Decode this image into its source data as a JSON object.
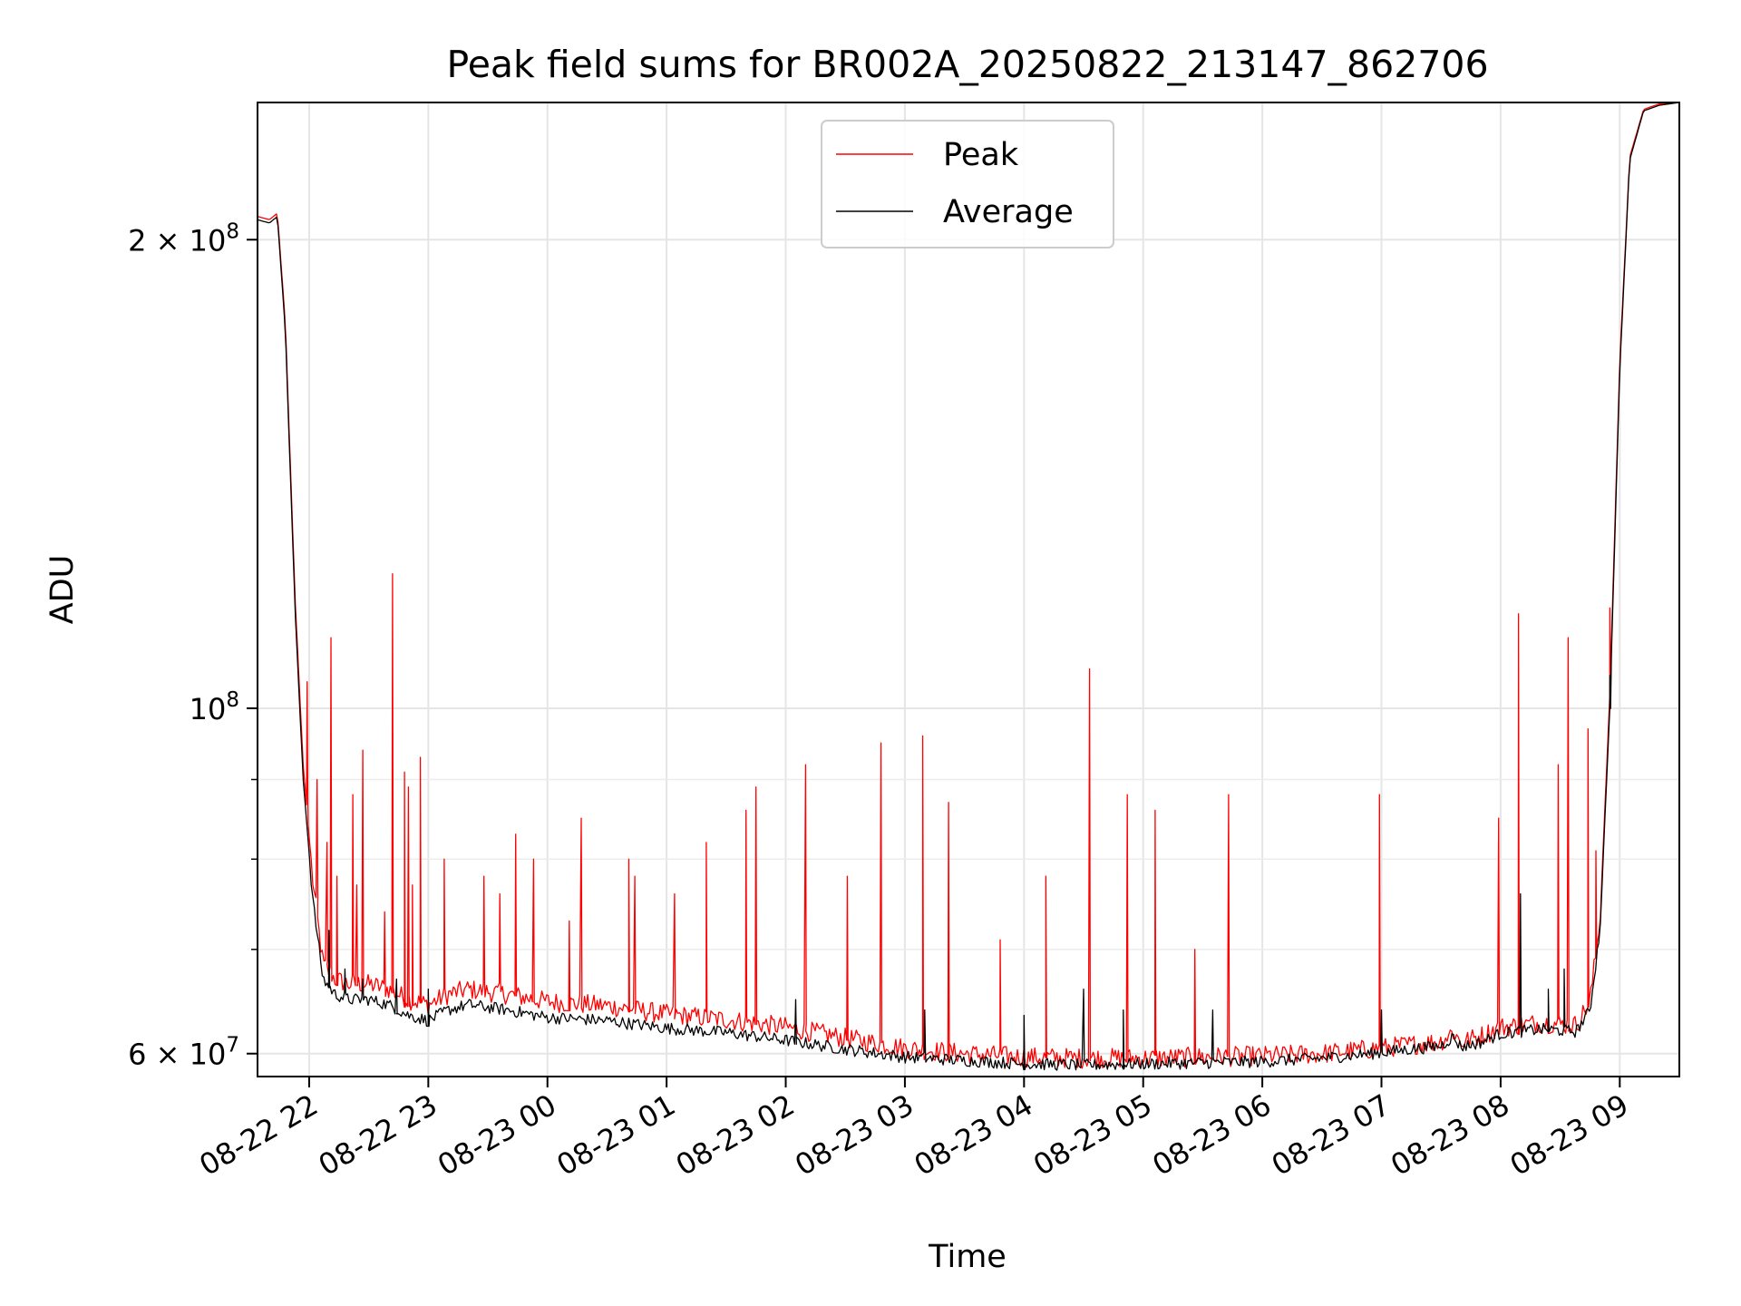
{
  "chart_data": {
    "type": "line",
    "title": "Peak field sums for BR002A_20250822_213147_862706",
    "xlabel": "Time",
    "ylabel": "ADU",
    "y_scale": "log",
    "grid": true,
    "legend_placement": "upper-center",
    "xlim": [
      "2025-08-22T21:34",
      "2025-08-23T09:30"
    ],
    "ylim": [
      58000000,
      245000000
    ],
    "x_ticks": [
      {
        "value": "2025-08-22T22:00",
        "label": "08-22 22"
      },
      {
        "value": "2025-08-22T23:00",
        "label": "08-22 23"
      },
      {
        "value": "2025-08-23T00:00",
        "label": "08-23 00"
      },
      {
        "value": "2025-08-23T01:00",
        "label": "08-23 01"
      },
      {
        "value": "2025-08-23T02:00",
        "label": "08-23 02"
      },
      {
        "value": "2025-08-23T03:00",
        "label": "08-23 03"
      },
      {
        "value": "2025-08-23T04:00",
        "label": "08-23 04"
      },
      {
        "value": "2025-08-23T05:00",
        "label": "08-23 05"
      },
      {
        "value": "2025-08-23T06:00",
        "label": "08-23 06"
      },
      {
        "value": "2025-08-23T07:00",
        "label": "08-23 07"
      },
      {
        "value": "2025-08-23T08:00",
        "label": "08-23 08"
      },
      {
        "value": "2025-08-23T09:00",
        "label": "08-23 09"
      }
    ],
    "y_major_ticks": [
      {
        "value": 60000000,
        "mantissa": "6",
        "exp": "7"
      },
      {
        "value": 100000000,
        "mantissa": "",
        "exp": "8"
      },
      {
        "value": 200000000,
        "mantissa": "2",
        "exp": "8"
      }
    ],
    "y_minor_ticks": [
      70000000,
      80000000,
      90000000
    ],
    "series": [
      {
        "name": "Average",
        "color": "#000000",
        "points": [
          [
            "2025-08-22T21:34",
            206000000
          ],
          [
            "2025-08-22T21:40",
            205000000
          ],
          [
            "2025-08-22T21:44",
            207000000
          ],
          [
            "2025-08-22T21:48",
            175000000
          ],
          [
            "2025-08-22T21:53",
            115000000
          ],
          [
            "2025-08-22T21:57",
            90000000
          ],
          [
            "2025-08-22T22:02",
            75000000
          ],
          [
            "2025-08-22T22:07",
            67000000
          ],
          [
            "2025-08-22T22:13",
            65500000
          ],
          [
            "2025-08-22T22:20",
            65000000
          ],
          [
            "2025-08-22T22:30",
            65000000
          ],
          [
            "2025-08-22T22:40",
            64500000
          ],
          [
            "2025-08-22T22:50",
            63500000
          ],
          [
            "2025-08-22T23:00",
            63000000
          ],
          [
            "2025-08-22T23:10",
            64000000
          ],
          [
            "2025-08-22T23:20",
            64500000
          ],
          [
            "2025-08-22T23:40",
            64000000
          ],
          [
            "2025-08-23T00:00",
            63300000
          ],
          [
            "2025-08-23T00:30",
            63000000
          ],
          [
            "2025-08-23T01:00",
            62300000
          ],
          [
            "2025-08-23T01:30",
            61900000
          ],
          [
            "2025-08-23T02:00",
            61200000
          ],
          [
            "2025-08-23T02:30",
            60400000
          ],
          [
            "2025-08-23T03:00",
            59700000
          ],
          [
            "2025-08-23T03:30",
            59400000
          ],
          [
            "2025-08-23T04:00",
            59100000
          ],
          [
            "2025-08-23T04:30",
            59000000
          ],
          [
            "2025-08-23T05:00",
            59100000
          ],
          [
            "2025-08-23T05:30",
            59200000
          ],
          [
            "2025-08-23T06:00",
            59300000
          ],
          [
            "2025-08-23T06:30",
            59600000
          ],
          [
            "2025-08-23T07:00",
            60100000
          ],
          [
            "2025-08-23T07:30",
            60700000
          ],
          [
            "2025-08-23T07:36",
            61500000
          ],
          [
            "2025-08-23T07:40",
            60600000
          ],
          [
            "2025-08-23T07:50",
            61000000
          ],
          [
            "2025-08-23T08:00",
            61800000
          ],
          [
            "2025-08-23T08:20",
            62200000
          ],
          [
            "2025-08-23T08:38",
            62000000
          ],
          [
            "2025-08-23T08:45",
            64000000
          ],
          [
            "2025-08-23T08:50",
            72000000
          ],
          [
            "2025-08-23T08:55",
            100000000
          ],
          [
            "2025-08-23T09:00",
            165000000
          ],
          [
            "2025-08-23T09:05",
            225000000
          ],
          [
            "2025-08-23T09:12",
            242000000
          ],
          [
            "2025-08-23T09:20",
            244000000
          ],
          [
            "2025-08-23T09:30",
            245000000
          ]
        ],
        "spikes": [
          [
            "2025-08-22T22:10",
            72000000
          ],
          [
            "2025-08-22T22:18",
            68000000
          ],
          [
            "2025-08-22T22:27",
            67000000
          ],
          [
            "2025-08-22T22:44",
            67000000
          ],
          [
            "2025-08-22T23:00",
            66000000
          ],
          [
            "2025-08-23T02:05",
            65000000
          ],
          [
            "2025-08-23T03:10",
            64000000
          ],
          [
            "2025-08-23T04:00",
            63500000
          ],
          [
            "2025-08-23T04:30",
            66000000
          ],
          [
            "2025-08-23T04:50",
            64000000
          ],
          [
            "2025-08-23T05:35",
            64000000
          ],
          [
            "2025-08-23T07:00",
            64000000
          ],
          [
            "2025-08-23T08:10",
            76000000
          ],
          [
            "2025-08-23T08:24",
            66000000
          ],
          [
            "2025-08-23T08:32",
            68000000
          ],
          [
            "2025-08-23T08:55",
            105000000
          ]
        ]
      },
      {
        "name": "Peak",
        "color": "#ff0000",
        "points": [
          [
            "2025-08-22T21:34",
            207000000
          ],
          [
            "2025-08-22T21:40",
            206000000
          ],
          [
            "2025-08-22T21:44",
            208000000
          ],
          [
            "2025-08-22T21:48",
            177000000
          ],
          [
            "2025-08-22T21:53",
            117000000
          ],
          [
            "2025-08-22T21:57",
            92000000
          ],
          [
            "2025-08-22T22:02",
            77000000
          ],
          [
            "2025-08-22T22:07",
            68500000
          ],
          [
            "2025-08-22T22:13",
            67000000
          ],
          [
            "2025-08-22T22:20",
            66500000
          ],
          [
            "2025-08-22T22:30",
            66500000
          ],
          [
            "2025-08-22T22:40",
            66000000
          ],
          [
            "2025-08-22T22:50",
            65000000
          ],
          [
            "2025-08-22T23:00",
            64500000
          ],
          [
            "2025-08-22T23:10",
            65500000
          ],
          [
            "2025-08-22T23:20",
            66000000
          ],
          [
            "2025-08-22T23:40",
            65500000
          ],
          [
            "2025-08-23T00:00",
            64800000
          ],
          [
            "2025-08-23T00:30",
            64400000
          ],
          [
            "2025-08-23T01:00",
            63600000
          ],
          [
            "2025-08-23T01:30",
            63100000
          ],
          [
            "2025-08-23T02:00",
            62400000
          ],
          [
            "2025-08-23T02:30",
            61400000
          ],
          [
            "2025-08-23T03:00",
            60500000
          ],
          [
            "2025-08-23T03:30",
            60000000
          ],
          [
            "2025-08-23T04:00",
            59700000
          ],
          [
            "2025-08-23T04:30",
            59600000
          ],
          [
            "2025-08-23T05:00",
            59600000
          ],
          [
            "2025-08-23T05:30",
            59700000
          ],
          [
            "2025-08-23T06:00",
            59800000
          ],
          [
            "2025-08-23T06:30",
            60000000
          ],
          [
            "2025-08-23T07:00",
            60500000
          ],
          [
            "2025-08-23T07:30",
            61100000
          ],
          [
            "2025-08-23T07:36",
            62000000
          ],
          [
            "2025-08-23T07:40",
            61000000
          ],
          [
            "2025-08-23T07:50",
            61600000
          ],
          [
            "2025-08-23T08:00",
            62400000
          ],
          [
            "2025-08-23T08:20",
            62800000
          ],
          [
            "2025-08-23T08:38",
            62600000
          ],
          [
            "2025-08-23T08:45",
            64800000
          ],
          [
            "2025-08-23T08:50",
            73000000
          ],
          [
            "2025-08-23T08:55",
            102000000
          ],
          [
            "2025-08-23T09:00",
            167000000
          ],
          [
            "2025-08-23T09:05",
            226000000
          ],
          [
            "2025-08-23T09:12",
            242500000
          ],
          [
            "2025-08-23T09:20",
            244500000
          ],
          [
            "2025-08-23T09:30",
            245000000
          ]
        ],
        "spikes": [
          [
            "2025-08-22T21:59",
            104000000
          ],
          [
            "2025-08-22T22:04",
            90000000
          ],
          [
            "2025-08-22T22:09",
            82000000
          ],
          [
            "2025-08-22T22:11",
            111000000
          ],
          [
            "2025-08-22T22:14",
            78000000
          ],
          [
            "2025-08-22T22:22",
            88000000
          ],
          [
            "2025-08-22T22:24",
            77000000
          ],
          [
            "2025-08-22T22:27",
            94000000
          ],
          [
            "2025-08-22T22:38",
            74000000
          ],
          [
            "2025-08-22T22:42",
            122000000
          ],
          [
            "2025-08-22T22:48",
            91000000
          ],
          [
            "2025-08-22T22:50",
            89000000
          ],
          [
            "2025-08-22T22:52",
            77000000
          ],
          [
            "2025-08-22T22:56",
            93000000
          ],
          [
            "2025-08-22T23:08",
            80000000
          ],
          [
            "2025-08-22T23:28",
            78000000
          ],
          [
            "2025-08-22T23:36",
            76000000
          ],
          [
            "2025-08-22T23:44",
            83000000
          ],
          [
            "2025-08-22T23:53",
            80000000
          ],
          [
            "2025-08-23T00:11",
            73000000
          ],
          [
            "2025-08-23T00:17",
            85000000
          ],
          [
            "2025-08-23T00:41",
            80000000
          ],
          [
            "2025-08-23T00:44",
            78000000
          ],
          [
            "2025-08-23T01:04",
            76000000
          ],
          [
            "2025-08-23T01:20",
            82000000
          ],
          [
            "2025-08-23T01:40",
            86000000
          ],
          [
            "2025-08-23T01:45",
            89000000
          ],
          [
            "2025-08-23T02:10",
            92000000
          ],
          [
            "2025-08-23T02:31",
            78000000
          ],
          [
            "2025-08-23T02:48",
            95000000
          ],
          [
            "2025-08-23T03:09",
            96000000
          ],
          [
            "2025-08-23T03:22",
            87000000
          ],
          [
            "2025-08-23T03:48",
            71000000
          ],
          [
            "2025-08-23T04:11",
            78000000
          ],
          [
            "2025-08-23T04:33",
            106000000
          ],
          [
            "2025-08-23T04:52",
            88000000
          ],
          [
            "2025-08-23T05:06",
            86000000
          ],
          [
            "2025-08-23T05:26",
            70000000
          ],
          [
            "2025-08-23T05:43",
            88000000
          ],
          [
            "2025-08-23T06:59",
            88000000
          ],
          [
            "2025-08-23T07:59",
            85000000
          ],
          [
            "2025-08-23T08:09",
            115000000
          ],
          [
            "2025-08-23T08:29",
            92000000
          ],
          [
            "2025-08-23T08:34",
            111000000
          ],
          [
            "2025-08-23T08:44",
            97000000
          ],
          [
            "2025-08-23T08:48",
            81000000
          ],
          [
            "2025-08-23T08:55",
            116000000
          ]
        ]
      }
    ]
  }
}
